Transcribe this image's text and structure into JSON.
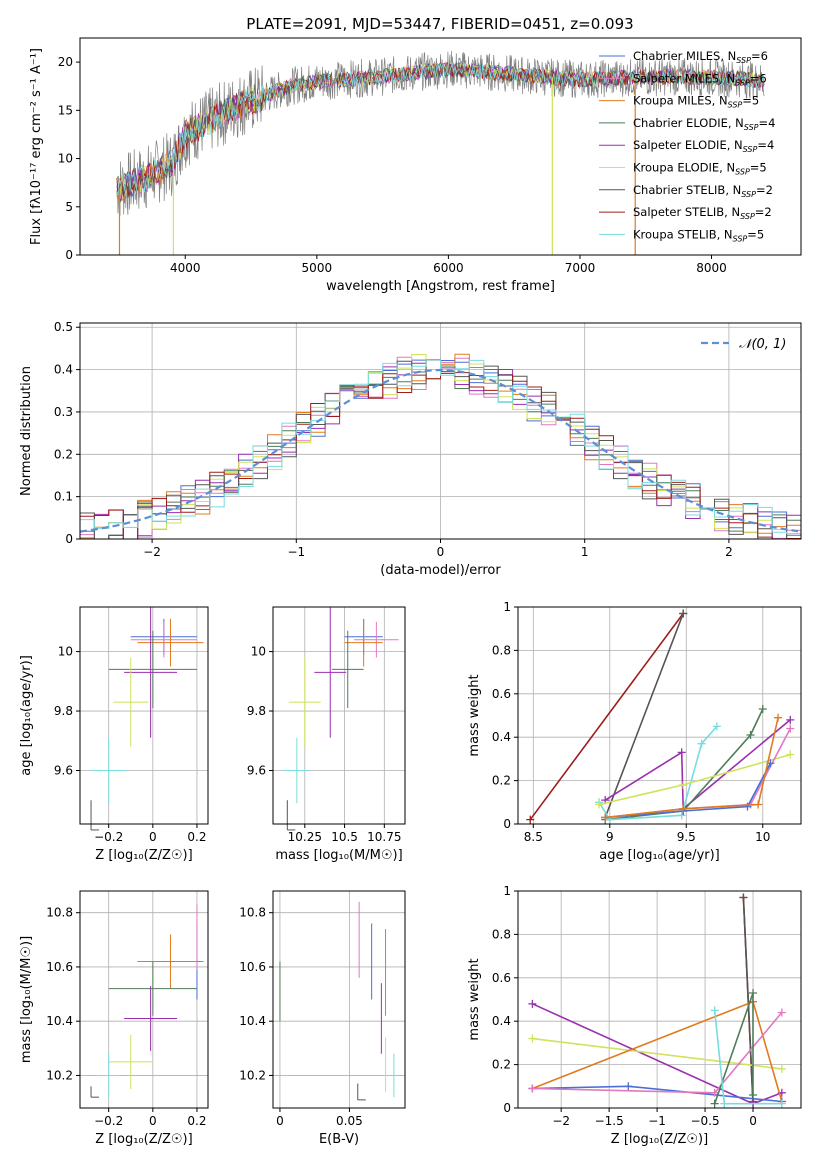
{
  "figure": {
    "title": "PLATE=2091, MJD=53447, FIBERID=0451, z=0.093"
  },
  "colors": {
    "chabrier_miles": "#4a6fd6",
    "salpeter_miles": "#e377c2",
    "kroupa_miles": "#e07b1f",
    "chabrier_elodie": "#4f7d58",
    "salpeter_elodie": "#9a2fb0",
    "kroupa_elodie": "#cfe35b",
    "chabrier_stelib": "#555555",
    "salpeter_stelib": "#a01c1c",
    "kroupa_stelib": "#78dce0",
    "data_spectrum": "#808080",
    "normal_curve": "#5b8fd6"
  },
  "chart_data": [
    {
      "id": "spectrum",
      "type": "line",
      "xlabel": "wavelength [Angstrom, rest frame]",
      "ylabel": "Flux [fλ10⁻¹⁷ erg cm⁻² s⁻¹ A⁻¹]",
      "xlim": [
        3200,
        8680
      ],
      "ylim": [
        0,
        22.5
      ],
      "xticks": [
        4000,
        5000,
        6000,
        7000,
        8000
      ],
      "yticks": [
        0,
        5,
        10,
        15,
        20
      ],
      "grid": false,
      "legend": "top-right",
      "series": [
        {
          "name": "Chabrier MILES, N_SSP=6",
          "key": "chabrier_miles"
        },
        {
          "name": "Salpeter MILES, N_SSP=6",
          "key": "salpeter_miles"
        },
        {
          "name": "Kroupa MILES, N_SSP=5",
          "key": "kroupa_miles"
        },
        {
          "name": "Chabrier ELODIE, N_SSP=4",
          "key": "chabrier_elodie"
        },
        {
          "name": "Salpeter ELODIE, N_SSP=4",
          "key": "salpeter_elodie"
        },
        {
          "name": "Kroupa ELODIE, N_SSP=5",
          "key": "kroupa_elodie"
        },
        {
          "name": "Chabrier STELIB, N_SSP=2",
          "key": "chabrier_stelib"
        },
        {
          "name": "Salpeter STELIB, N_SSP=2",
          "key": "salpeter_stelib"
        },
        {
          "name": "Kroupa STELIB, N_SSP=5",
          "key": "kroupa_stelib"
        }
      ],
      "continuum": {
        "x": [
          3500,
          3700,
          3900,
          4000,
          4200,
          4400,
          4600,
          4800,
          5000,
          5200,
          5500,
          5800,
          6000,
          6300,
          6600,
          7000,
          7400,
          7800,
          8200,
          8400
        ],
        "y": [
          7.0,
          8.0,
          9.5,
          12.5,
          14.0,
          15.5,
          16.5,
          17.5,
          18.0,
          18.2,
          18.5,
          19.0,
          19.3,
          19.0,
          18.6,
          18.2,
          18.4,
          18.5,
          18.3,
          18.0
        ]
      },
      "spikes": [
        {
          "x": 3500,
          "y": 0.0
        },
        {
          "x": 3910,
          "y": 0.0
        },
        {
          "x": 6790,
          "y": 0.0
        },
        {
          "x": 7420,
          "y": 0.0
        }
      ]
    },
    {
      "id": "residuals",
      "type": "histogram",
      "xlabel": "(data-model)/error",
      "ylabel": "Normed distribution",
      "xlim": [
        -2.5,
        2.5
      ],
      "ylim": [
        0,
        0.51
      ],
      "xticks": [
        -2,
        -1,
        0,
        1,
        2
      ],
      "yticks": [
        0.0,
        0.1,
        0.2,
        0.3,
        0.4,
        0.5
      ],
      "grid": true,
      "legend": "top-right",
      "curve_label": "𝒩(0, 1)",
      "bin_width": 0.1
    },
    {
      "id": "age_vs_Z",
      "type": "scatter",
      "xlabel": "Z [log₁₀(Z/Z☉)]",
      "ylabel": "age  [log₁₀(age/yr)]",
      "xlim": [
        -0.33,
        0.25
      ],
      "ylim": [
        9.42,
        10.15
      ],
      "xticks": [
        -0.2,
        0.0,
        0.2
      ],
      "yticks": [
        9.6,
        9.8,
        10.0
      ],
      "grid": true,
      "points": [
        {
          "key": "chabrier_miles",
          "x": 0.05,
          "y": 10.05,
          "xerr": 0.15,
          "yerr": 0.06
        },
        {
          "key": "salpeter_miles",
          "x": 0.05,
          "y": 10.04,
          "xerr": 0.15,
          "yerr": 0.06
        },
        {
          "key": "kroupa_miles",
          "x": 0.08,
          "y": 10.03,
          "xerr": 0.15,
          "yerr": 0.08
        },
        {
          "key": "chabrier_elodie",
          "x": 0.0,
          "y": 9.94,
          "xerr": 0.2,
          "yerr": 0.13
        },
        {
          "key": "salpeter_elodie",
          "x": -0.01,
          "y": 9.93,
          "xerr": 0.12,
          "yerr": 0.22
        },
        {
          "key": "kroupa_elodie",
          "x": -0.1,
          "y": 9.83,
          "xerr": 0.08,
          "yerr": 0.15
        },
        {
          "key": "chabrier_stelib",
          "x": -0.28,
          "y": 9.45,
          "xerr": 0.0,
          "yerr": 0.05
        },
        {
          "key": "kroupa_stelib",
          "x": -0.2,
          "y": 9.6,
          "xerr": 0.08,
          "yerr": 0.11
        }
      ]
    },
    {
      "id": "age_vs_mass",
      "type": "scatter",
      "xlabel": "mass [log₁₀(M/M☉)]",
      "ylabel": "",
      "xlim": [
        10.05,
        10.88
      ],
      "ylim": [
        9.42,
        10.15
      ],
      "xticks": [
        10.25,
        10.5,
        10.75
      ],
      "yticks": [
        9.6,
        9.8,
        10.0
      ],
      "grid": true,
      "points": [
        {
          "key": "chabrier_miles",
          "x": 10.62,
          "y": 10.05,
          "xerr": 0.12,
          "yerr": 0.06
        },
        {
          "key": "salpeter_miles",
          "x": 10.7,
          "y": 10.04,
          "xerr": 0.14,
          "yerr": 0.06
        },
        {
          "key": "kroupa_miles",
          "x": 10.62,
          "y": 10.03,
          "xerr": 0.12,
          "yerr": 0.08
        },
        {
          "key": "chabrier_elodie",
          "x": 10.52,
          "y": 9.94,
          "xerr": 0.1,
          "yerr": 0.13
        },
        {
          "key": "salpeter_elodie",
          "x": 10.41,
          "y": 9.93,
          "xerr": 0.1,
          "yerr": 0.22
        },
        {
          "key": "kroupa_elodie",
          "x": 10.25,
          "y": 9.83,
          "xerr": 0.1,
          "yerr": 0.15
        },
        {
          "key": "chabrier_stelib",
          "x": 10.14,
          "y": 9.45,
          "xerr": 0.0,
          "yerr": 0.05
        },
        {
          "key": "kroupa_stelib",
          "x": 10.2,
          "y": 9.6,
          "xerr": 0.08,
          "yerr": 0.11
        }
      ]
    },
    {
      "id": "weight_vs_age",
      "type": "line",
      "xlabel": "age  [log₁₀(age/yr)]",
      "ylabel": "mass weight",
      "xlim": [
        8.4,
        10.25
      ],
      "ylim": [
        0,
        1.0
      ],
      "xticks": [
        8.5,
        9.0,
        9.5,
        10.0
      ],
      "yticks": [
        0.0,
        0.2,
        0.4,
        0.6,
        0.8,
        1.0
      ],
      "grid": true,
      "series": [
        {
          "key": "salpeter_stelib",
          "x": [
            8.48,
            9.48
          ],
          "y": [
            0.02,
            0.97
          ]
        },
        {
          "key": "chabrier_stelib",
          "x": [
            8.97,
            9.48
          ],
          "y": [
            0.03,
            0.97
          ]
        },
        {
          "key": "salpeter_elodie",
          "x": [
            8.97,
            9.47,
            9.48,
            10.18
          ],
          "y": [
            0.11,
            0.33,
            0.07,
            0.48
          ]
        },
        {
          "key": "chabrier_elodie",
          "x": [
            8.97,
            9.48,
            9.92,
            10.0
          ],
          "y": [
            0.02,
            0.06,
            0.41,
            0.53
          ]
        },
        {
          "key": "kroupa_stelib",
          "x": [
            8.93,
            9.0,
            9.47,
            9.6,
            9.7
          ],
          "y": [
            0.1,
            0.02,
            0.04,
            0.37,
            0.45
          ]
        },
        {
          "key": "kroupa_elodie",
          "x": [
            8.93,
            9.48,
            10.18
          ],
          "y": [
            0.09,
            0.18,
            0.32
          ]
        },
        {
          "key": "salpeter_miles",
          "x": [
            8.97,
            9.48,
            9.92,
            10.18
          ],
          "y": [
            0.03,
            0.07,
            0.09,
            0.44
          ]
        },
        {
          "key": "chabrier_miles",
          "x": [
            8.97,
            9.48,
            9.9,
            10.05
          ],
          "y": [
            0.03,
            0.06,
            0.08,
            0.28
          ]
        },
        {
          "key": "kroupa_miles",
          "x": [
            8.97,
            9.48,
            9.97,
            10.1
          ],
          "y": [
            0.03,
            0.07,
            0.09,
            0.49
          ]
        }
      ]
    },
    {
      "id": "mass_vs_Z",
      "type": "scatter",
      "xlabel": "Z [log₁₀(Z/Z☉)]",
      "ylabel": "mass [log₁₀(M/M☉)]",
      "xlim": [
        -0.33,
        0.25
      ],
      "ylim": [
        10.08,
        10.88
      ],
      "xticks": [
        -0.2,
        0.0,
        0.2
      ],
      "yticks": [
        10.2,
        10.4,
        10.6,
        10.8
      ],
      "grid": true,
      "points": [
        {
          "key": "chabrier_miles",
          "x": 0.2,
          "y": 10.62,
          "xerr": 0.0,
          "yerr": 0.14
        },
        {
          "key": "salpeter_miles",
          "x": 0.2,
          "y": 10.71,
          "xerr": 0.0,
          "yerr": 0.12
        },
        {
          "key": "kroupa_miles",
          "x": 0.08,
          "y": 10.62,
          "xerr": 0.15,
          "yerr": 0.1
        },
        {
          "key": "chabrier_elodie",
          "x": 0.0,
          "y": 10.52,
          "xerr": 0.2,
          "yerr": 0.1
        },
        {
          "key": "salpeter_elodie",
          "x": -0.01,
          "y": 10.41,
          "xerr": 0.12,
          "yerr": 0.12
        },
        {
          "key": "kroupa_elodie",
          "x": -0.1,
          "y": 10.25,
          "xerr": 0.1,
          "yerr": 0.1
        },
        {
          "key": "chabrier_stelib",
          "x": -0.28,
          "y": 10.14,
          "xerr": 0.0,
          "yerr": 0.02
        },
        {
          "key": "kroupa_stelib",
          "x": -0.2,
          "y": 10.2,
          "xerr": 0.06,
          "yerr": 0.08
        }
      ]
    },
    {
      "id": "mass_vs_ebv",
      "type": "scatter",
      "xlabel": "E(B-V)",
      "ylabel": "",
      "xlim": [
        -0.005,
        0.09
      ],
      "ylim": [
        10.08,
        10.88
      ],
      "xticks": [
        0.0,
        0.05
      ],
      "yticks": [
        10.2,
        10.4,
        10.6,
        10.8
      ],
      "grid": true,
      "points": [
        {
          "key": "chabrier_elodie",
          "x": 0.0,
          "y": 10.51,
          "xerr": 0.0,
          "yerr": 0.11
        },
        {
          "key": "salpeter_miles",
          "x": 0.057,
          "y": 10.7,
          "xerr": 0.0,
          "yerr": 0.14
        },
        {
          "key": "chabrier_stelib",
          "x": 0.056,
          "y": 10.14,
          "xerr": 0.0,
          "yerr": 0.03
        },
        {
          "key": "chabrier_miles",
          "x": 0.066,
          "y": 10.62,
          "xerr": 0.0,
          "yerr": 0.14
        },
        {
          "key": "salpeter_elodie",
          "x": 0.073,
          "y": 10.41,
          "xerr": 0.0,
          "yerr": 0.13
        },
        {
          "key": "kroupa_miles",
          "x": 0.076,
          "y": 10.58,
          "xerr": 0.0,
          "yerr": 0.16
        },
        {
          "key": "kroupa_elodie",
          "x": 0.076,
          "y": 10.24,
          "xerr": 0.0,
          "yerr": 0.1
        },
        {
          "key": "kroupa_stelib",
          "x": 0.082,
          "y": 10.2,
          "xerr": 0.0,
          "yerr": 0.08
        }
      ]
    },
    {
      "id": "weight_vs_Z",
      "type": "line",
      "xlabel": "Z [log₁₀(Z/Z☉)]",
      "ylabel": "mass weight",
      "xlim": [
        -2.45,
        0.5
      ],
      "ylim": [
        0,
        1.0
      ],
      "xticks": [
        -2.0,
        -1.5,
        -1.0,
        -0.5,
        0.0
      ],
      "yticks": [
        0.0,
        0.2,
        0.4,
        0.6,
        0.8,
        1.0
      ],
      "grid": true,
      "series": [
        {
          "key": "salpeter_stelib",
          "x": [
            -0.1,
            0.0
          ],
          "y": [
            0.97,
            0.02
          ]
        },
        {
          "key": "chabrier_stelib",
          "x": [
            -0.1,
            0.0
          ],
          "y": [
            0.97,
            0.03
          ]
        },
        {
          "key": "salpeter_elodie",
          "x": [
            -2.3,
            0.0,
            0.3
          ],
          "y": [
            0.48,
            0.02,
            0.07
          ]
        },
        {
          "key": "kroupa_elodie",
          "x": [
            -2.3,
            0.3
          ],
          "y": [
            0.32,
            0.18
          ]
        },
        {
          "key": "kroupa_miles",
          "x": [
            -2.3,
            0.0,
            0.3
          ],
          "y": [
            0.09,
            0.49,
            0.03
          ]
        },
        {
          "key": "chabrier_miles",
          "x": [
            -2.3,
            -1.3,
            0.3
          ],
          "y": [
            0.09,
            0.1,
            0.03
          ]
        },
        {
          "key": "salpeter_miles",
          "x": [
            -2.3,
            -0.4,
            0.3
          ],
          "y": [
            0.09,
            0.07,
            0.44
          ]
        },
        {
          "key": "chabrier_elodie",
          "x": [
            -0.4,
            0.0,
            0.0
          ],
          "y": [
            0.02,
            0.53,
            0.06
          ]
        },
        {
          "key": "kroupa_stelib",
          "x": [
            -0.4,
            -0.3,
            0.3
          ],
          "y": [
            0.45,
            0.02,
            0.02
          ]
        }
      ]
    }
  ]
}
